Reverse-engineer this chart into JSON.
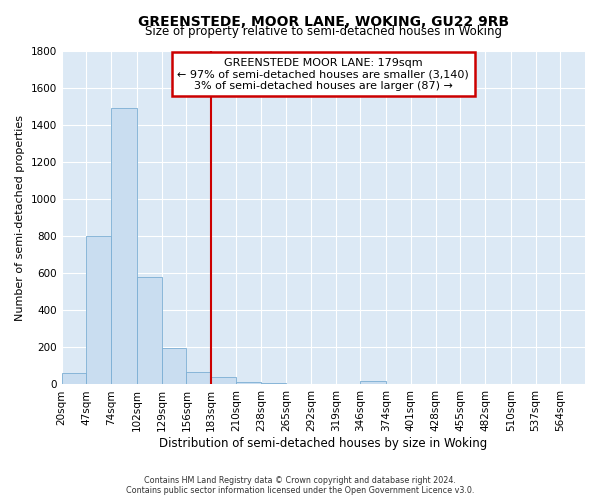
{
  "title": "GREENSTEDE, MOOR LANE, WOKING, GU22 9RB",
  "subtitle": "Size of property relative to semi-detached houses in Woking",
  "xlabel": "Distribution of semi-detached houses by size in Woking",
  "ylabel": "Number of semi-detached properties",
  "bin_labels": [
    "20sqm",
    "47sqm",
    "74sqm",
    "102sqm",
    "129sqm",
    "156sqm",
    "183sqm",
    "210sqm",
    "238sqm",
    "265sqm",
    "292sqm",
    "319sqm",
    "346sqm",
    "374sqm",
    "401sqm",
    "428sqm",
    "455sqm",
    "482sqm",
    "510sqm",
    "537sqm",
    "564sqm"
  ],
  "bin_edges": [
    20,
    47,
    74,
    102,
    129,
    156,
    183,
    210,
    238,
    265,
    292,
    319,
    346,
    374,
    401,
    428,
    455,
    482,
    510,
    537,
    564,
    591
  ],
  "bar_heights": [
    60,
    800,
    1490,
    580,
    195,
    65,
    40,
    15,
    10,
    5,
    5,
    0,
    20,
    0,
    0,
    0,
    0,
    0,
    0,
    0,
    0
  ],
  "bar_color": "#c9ddf0",
  "bar_edge_color": "#7baed4",
  "property_line_x": 183,
  "property_line_color": "#cc0000",
  "annotation_title": "GREENSTEDE MOOR LANE: 179sqm",
  "annotation_line1": "← 97% of semi-detached houses are smaller (3,140)",
  "annotation_line2": "3% of semi-detached houses are larger (87) →",
  "ylim": [
    0,
    1800
  ],
  "yticks": [
    0,
    200,
    400,
    600,
    800,
    1000,
    1200,
    1400,
    1600,
    1800
  ],
  "footer_line1": "Contains HM Land Registry data © Crown copyright and database right 2024.",
  "footer_line2": "Contains public sector information licensed under the Open Government Licence v3.0.",
  "bg_color": "#ffffff",
  "plot_bg_color": "#dce9f5"
}
